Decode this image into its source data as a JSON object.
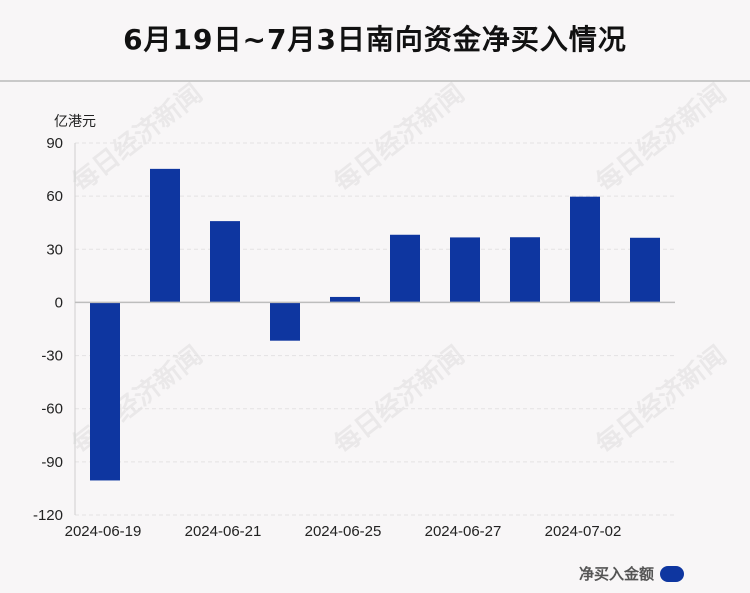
{
  "title": "6月19日~7月3日南向资金净买入情况",
  "watermark": "每日经济新闻",
  "chart_data": {
    "type": "bar",
    "ylabel": "亿港元",
    "ylim": [
      -120,
      90
    ],
    "yticks": [
      90,
      60,
      30,
      0,
      -30,
      -60,
      -90,
      -120
    ],
    "categories": [
      "2024-06-19",
      "2024-06-20",
      "2024-06-21",
      "2024-06-24",
      "2024-06-25",
      "2024-06-26",
      "2024-06-27",
      "2024-06-28",
      "2024-07-02",
      "2024-07-03"
    ],
    "xtick_labels": [
      "2024-06-19",
      "2024-06-21",
      "2024-06-25",
      "2024-06-27",
      "2024-07-02"
    ],
    "series": [
      {
        "name": "净买入金额",
        "color": "#0e36a0",
        "values": [
          -100.5,
          75.4,
          45.9,
          -21.6,
          3.1,
          38.2,
          36.7,
          36.8,
          59.7,
          36.5
        ]
      }
    ],
    "grid": true,
    "legend_position": "bottom-right"
  }
}
